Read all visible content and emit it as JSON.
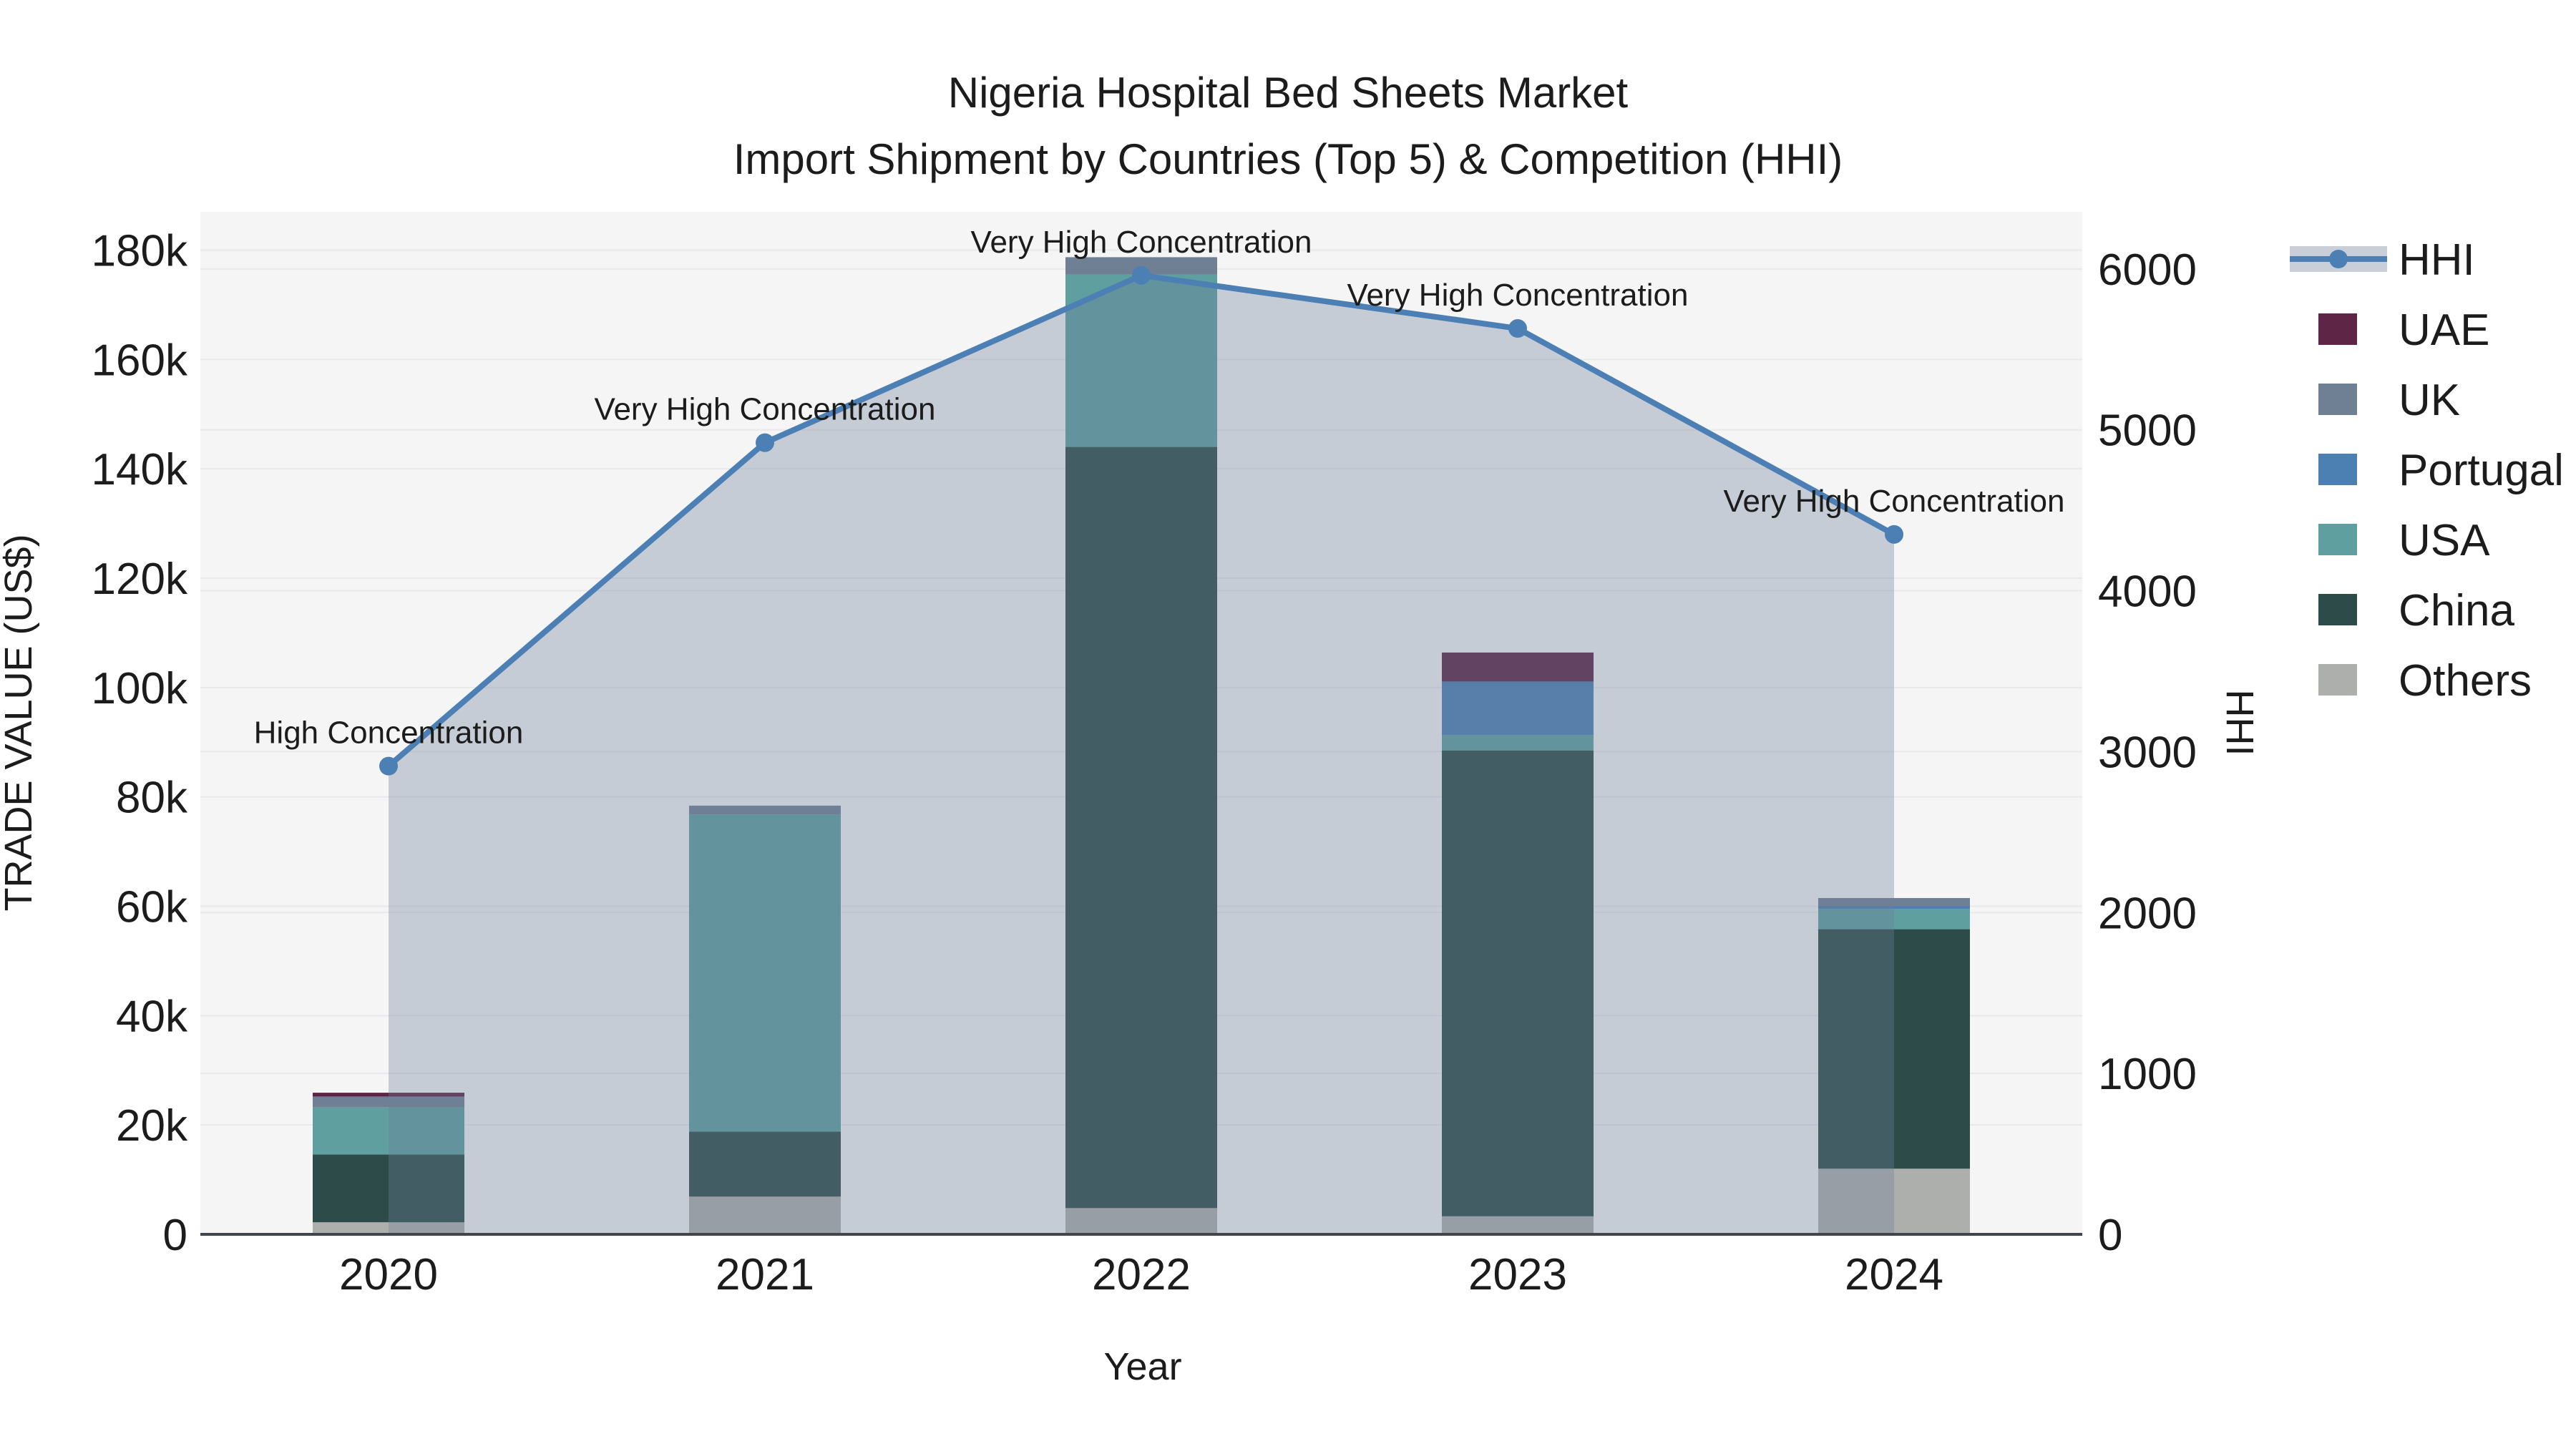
{
  "title": "Nigeria Hospital Bed Sheets Market",
  "subtitle": "Import Shipment by Countries (Top 5) & Competition (HHI)",
  "axes": {
    "x_title": "Year",
    "y_left_title": "TRADE VALUE (US$)",
    "y_right_title": "HHI",
    "y_left_tick_labels": [
      "0",
      "20k",
      "40k",
      "60k",
      "80k",
      "100k",
      "120k",
      "140k",
      "160k",
      "180k"
    ],
    "y_right_tick_labels": [
      "0",
      "1000",
      "2000",
      "3000",
      "4000",
      "5000",
      "6000"
    ]
  },
  "chart_data": {
    "type": "combo: stacked bar (left axis) + line with area fill (right axis)",
    "categories": [
      "2020",
      "2021",
      "2022",
      "2023",
      "2024"
    ],
    "xlabel": "Year",
    "ylabel_left": "TRADE VALUE (US$)",
    "ylabel_right": "HHI",
    "y_left_range": [
      0,
      187000
    ],
    "y_left_tick_step": 20000,
    "y_right_range": [
      0,
      6355
    ],
    "y_right_tick_step": 1000,
    "grid": true,
    "legend_position": "right",
    "bar_series_stack_bottom_to_top": [
      {
        "name": "Others",
        "color": "#adafac",
        "values": [
          2200,
          6900,
          4800,
          3300,
          12000
        ]
      },
      {
        "name": "China",
        "color": "#2d4c49",
        "values": [
          12400,
          11900,
          139200,
          85200,
          43800
        ]
      },
      {
        "name": "USA",
        "color": "#5f9f9f",
        "values": [
          8600,
          58000,
          31500,
          2800,
          3700
        ]
      },
      {
        "name": "Portugal",
        "color": "#4d80b2",
        "values": [
          0,
          0,
          0,
          9800,
          500
        ]
      },
      {
        "name": "UK",
        "color": "#6f8095",
        "values": [
          2000,
          1600,
          3200,
          0,
          1500
        ]
      },
      {
        "name": "UAE",
        "color": "#5e2547",
        "values": [
          700,
          0,
          0,
          5300,
          0
        ]
      }
    ],
    "bar_totals_usd": [
      25900,
      78400,
      178700,
      106400,
      61500
    ],
    "line_series": {
      "name": "HHI",
      "color": "#4c80b4",
      "line_width": 8,
      "marker_radius": 13,
      "area_fill": "rgba(108,126,152,0.34)",
      "values": [
        2910,
        4920,
        5960,
        5630,
        4350
      ]
    },
    "annotations": [
      {
        "x": "2020",
        "text": "High Concentration"
      },
      {
        "x": "2021",
        "text": "Very High Concentration"
      },
      {
        "x": "2022",
        "text": "Very High Concentration"
      },
      {
        "x": "2023",
        "text": "Very High Concentration"
      },
      {
        "x": "2024",
        "text": "Very High Concentration"
      }
    ],
    "legend_items": [
      {
        "label": "HHI",
        "kind": "line",
        "color": "#4c80b4"
      },
      {
        "label": "UAE",
        "kind": "swatch",
        "color": "#5e2547"
      },
      {
        "label": "UK",
        "kind": "swatch",
        "color": "#6f8095"
      },
      {
        "label": "Portugal",
        "kind": "swatch",
        "color": "#4d80b2"
      },
      {
        "label": "USA",
        "kind": "swatch",
        "color": "#5f9f9f"
      },
      {
        "label": "China",
        "kind": "swatch",
        "color": "#2d4c49"
      },
      {
        "label": "Others",
        "kind": "swatch",
        "color": "#adafac"
      }
    ]
  },
  "colors": {
    "plot_bg": "#f5f5f6",
    "grid": "#e9e9eb",
    "axis_line": "#41454c",
    "text": "#1c1c1c",
    "legend_band": "#c9ced8"
  }
}
